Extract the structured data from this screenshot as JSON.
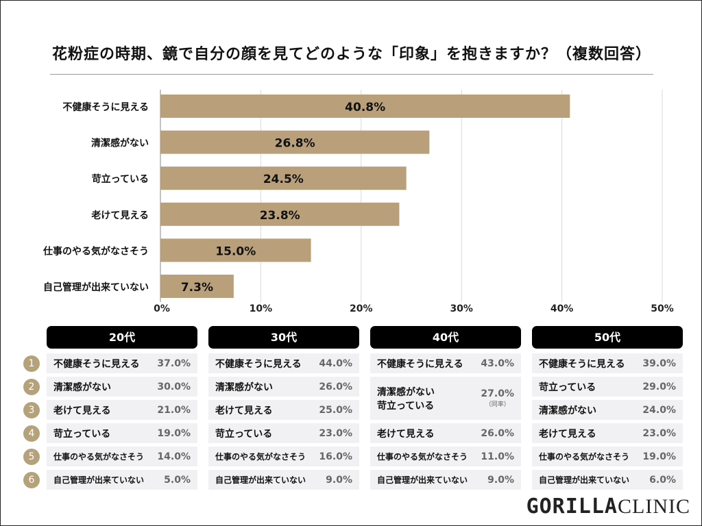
{
  "chart_data": {
    "type": "bar",
    "orientation": "horizontal",
    "title": "花粉症の時期、鏡で自分の顔を見てどのような「印象」を抱きますか？（複数回答）",
    "categories": [
      "不健康そうに見える",
      "清潔感がない",
      "苛立っている",
      "老けて見える",
      "仕事のやる気がなさそう",
      "自己管理が出来ていない"
    ],
    "values": [
      40.8,
      26.8,
      24.5,
      23.8,
      15.0,
      7.3
    ],
    "value_labels": [
      "40.8%",
      "26.8%",
      "24.5%",
      "23.8%",
      "15.0%",
      "7.3%"
    ],
    "xlim": [
      0,
      50
    ],
    "ticks": [
      "0%",
      "10%",
      "20%",
      "30%",
      "40%",
      "50%"
    ],
    "grid": true,
    "bar_color": "#b9a07a"
  },
  "ranks": [
    "1",
    "2",
    "3",
    "4",
    "5",
    "6"
  ],
  "age_groups": [
    {
      "title": "20代",
      "rows": [
        {
          "label": "不健康そうに見える",
          "pct": "37.0%"
        },
        {
          "label": "清潔感がない",
          "pct": "30.0%"
        },
        {
          "label": "老けて見える",
          "pct": "21.0%"
        },
        {
          "label": "苛立っている",
          "pct": "19.0%"
        },
        {
          "label": "仕事のやる気がなさそう",
          "pct": "14.0%"
        },
        {
          "label": "自己管理が出来ていない",
          "pct": "5.0%"
        }
      ]
    },
    {
      "title": "30代",
      "rows": [
        {
          "label": "不健康そうに見える",
          "pct": "44.0%"
        },
        {
          "label": "清潔感がない",
          "pct": "26.0%"
        },
        {
          "label": "老けて見える",
          "pct": "25.0%"
        },
        {
          "label": "苛立っている",
          "pct": "23.0%"
        },
        {
          "label": "仕事のやる気がなさそう",
          "pct": "16.0%"
        },
        {
          "label": "自己管理が出来ていない",
          "pct": "9.0%"
        }
      ]
    },
    {
      "title": "40代",
      "rows": [
        {
          "label": "不健康そうに見える",
          "pct": "43.0%"
        },
        {
          "label": "清潔感がない",
          "label2": "苛立っている",
          "pct": "27.0%",
          "note": "（同率）"
        },
        {
          "label": "老けて見える",
          "pct": "26.0%"
        },
        {
          "label": "仕事のやる気がなさそう",
          "pct": "11.0%"
        },
        {
          "label": "自己管理が出来ていない",
          "pct": "9.0%"
        }
      ]
    },
    {
      "title": "50代",
      "rows": [
        {
          "label": "不健康そうに見える",
          "pct": "39.0%"
        },
        {
          "label": "苛立っている",
          "pct": "29.0%"
        },
        {
          "label": "清潔感がない",
          "pct": "24.0%"
        },
        {
          "label": "老けて見える",
          "pct": "23.0%"
        },
        {
          "label": "仕事のやる気がなさそう",
          "pct": "19.0%"
        },
        {
          "label": "自己管理が出来ていない",
          "pct": "6.0%"
        }
      ]
    }
  ],
  "logo": {
    "bold": "GORILLA",
    "light": "CLINIC"
  }
}
